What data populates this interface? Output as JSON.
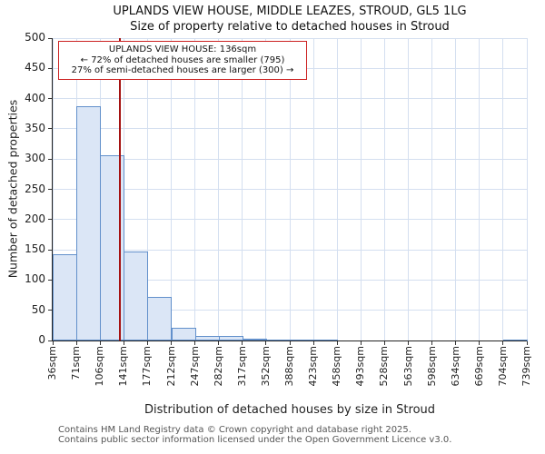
{
  "annotation": {
    "line1": "UPLANDS VIEW HOUSE: 136sqm",
    "line2": "← 72% of detached houses are smaller (795)",
    "line3": "27% of semi-detached houses are larger (300) →"
  },
  "footer": {
    "line1": "Contains HM Land Registry data © Crown copyright and database right 2025.",
    "line2": "Contains public sector information licensed under the Open Government Licence v3.0."
  },
  "chart_data": {
    "type": "bar",
    "title": "UPLANDS VIEW HOUSE, MIDDLE LEAZES, STROUD, GL5 1LG",
    "subtitle": "Size of property relative to detached houses in Stroud",
    "xlabel": "Distribution of detached houses by size in Stroud",
    "ylabel": "Number of detached properties",
    "bin_edges_sqm": [
      36,
      71,
      106,
      141,
      177,
      212,
      247,
      282,
      317,
      352,
      388,
      423,
      458,
      493,
      528,
      563,
      598,
      634,
      669,
      704,
      739
    ],
    "x_tick_labels": [
      "36sqm",
      "71sqm",
      "106sqm",
      "141sqm",
      "177sqm",
      "212sqm",
      "247sqm",
      "282sqm",
      "317sqm",
      "352sqm",
      "388sqm",
      "423sqm",
      "458sqm",
      "493sqm",
      "528sqm",
      "563sqm",
      "598sqm",
      "634sqm",
      "669sqm",
      "704sqm",
      "739sqm"
    ],
    "values": [
      143,
      388,
      307,
      147,
      72,
      21,
      8,
      7,
      3,
      2,
      2,
      1,
      0,
      0,
      0,
      0,
      0,
      0,
      0,
      2
    ],
    "y_ticks": [
      0,
      50,
      100,
      150,
      200,
      250,
      300,
      350,
      400,
      450,
      500
    ],
    "ylim": [
      0,
      500
    ],
    "marker_value_sqm": 136,
    "grid": true,
    "legend": "none",
    "colors": {
      "bar_fill": "#dbe6f6",
      "bar_border": "#6290cb",
      "marker_line": "#a51212",
      "grid_line": "#d4dff0",
      "annotation_border": "#cc2222"
    }
  }
}
